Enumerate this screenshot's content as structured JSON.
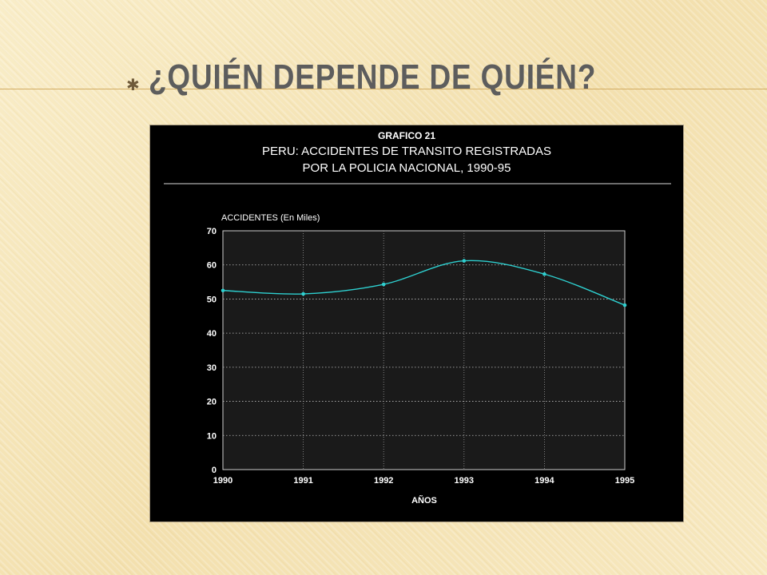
{
  "slide": {
    "title": "¿QUIÉN DEPENDE DE QUIÉN?",
    "bullet_icon": "star-bullet"
  },
  "colors": {
    "background": "#f6e7bd",
    "title": "#5d5d5d",
    "chart_bg": "#000000",
    "plot_bg": "#1a1a1a",
    "series": "#2ecfcf"
  },
  "chart_data": {
    "type": "line",
    "title_lines": [
      "GRAFICO 21",
      "PERU: ACCIDENTES DE TRANSITO REGISTRADAS",
      "POR LA POLICIA NACIONAL, 1990-95"
    ],
    "ylabel": "ACCIDENTES (En Miles)",
    "xlabel": "AÑOS",
    "x": [
      "1990",
      "1991",
      "1992",
      "1993",
      "1994",
      "1995"
    ],
    "series": [
      {
        "values": [
          52.5,
          51.5,
          54.3,
          61.2,
          57.3,
          48.2
        ]
      }
    ],
    "ylim": [
      0,
      70
    ],
    "yticks": [
      0,
      10,
      20,
      30,
      40,
      50,
      60,
      70
    ],
    "grid": true,
    "legend": "none"
  }
}
